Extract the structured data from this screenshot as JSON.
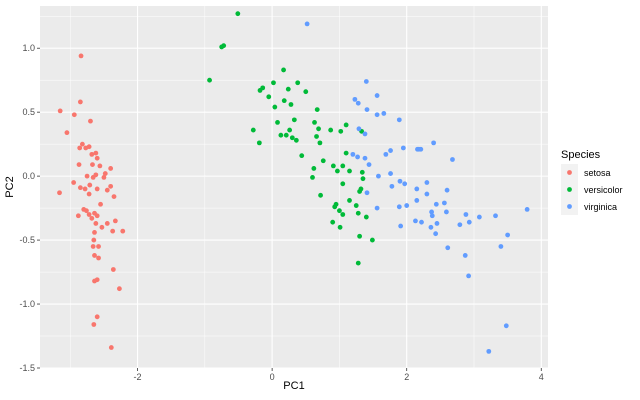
{
  "chart_data": {
    "type": "scatter",
    "xlabel": "PC1",
    "ylabel": "PC2",
    "xlim": [
      -3.45,
      4.1
    ],
    "ylim": [
      -1.5,
      1.33
    ],
    "x_ticks": [
      -2,
      0,
      2,
      4
    ],
    "y_ticks": [
      -1.5,
      -1.0,
      -0.5,
      0.0,
      0.5,
      1.0
    ],
    "x_tick_labels": [
      "-2",
      "0",
      "2",
      "4"
    ],
    "y_tick_labels": [
      "-1.5",
      "-1.0",
      "-0.5",
      "0.0",
      "0.5",
      "1.0"
    ],
    "grid": true,
    "legend": {
      "title": "Species",
      "position": "right"
    },
    "series": [
      {
        "name": "setosa",
        "color": "#F8766D",
        "points": [
          [
            -2.84,
            0.94
          ],
          [
            -3.15,
            0.51
          ],
          [
            -2.94,
            0.48
          ],
          [
            -2.85,
            0.58
          ],
          [
            -2.7,
            0.43
          ],
          [
            -3.05,
            0.34
          ],
          [
            -2.82,
            0.25
          ],
          [
            -2.77,
            0.22
          ],
          [
            -2.86,
            0.22
          ],
          [
            -2.72,
            0.23
          ],
          [
            -2.62,
            0.18
          ],
          [
            -2.68,
            0.17
          ],
          [
            -2.6,
            0.14
          ],
          [
            -2.87,
            0.09
          ],
          [
            -2.67,
            0.09
          ],
          [
            -2.56,
            0.08
          ],
          [
            -2.4,
            0.06
          ],
          [
            -2.48,
            0.02
          ],
          [
            -2.62,
            0.01
          ],
          [
            -2.75,
            0.0
          ],
          [
            -2.66,
            -0.01
          ],
          [
            -2.5,
            -0.01
          ],
          [
            -2.95,
            -0.05
          ],
          [
            -2.71,
            -0.07
          ],
          [
            -2.4,
            -0.08
          ],
          [
            -2.85,
            -0.09
          ],
          [
            -2.6,
            -0.1
          ],
          [
            -2.78,
            -0.1
          ],
          [
            -2.45,
            -0.11
          ],
          [
            -3.16,
            -0.13
          ],
          [
            -2.72,
            -0.14
          ],
          [
            -2.35,
            -0.16
          ],
          [
            -2.55,
            -0.22
          ],
          [
            -2.8,
            -0.26
          ],
          [
            -2.76,
            -0.27
          ],
          [
            -2.64,
            -0.29
          ],
          [
            -2.72,
            -0.3
          ],
          [
            -2.6,
            -0.31
          ],
          [
            -2.88,
            -0.31
          ],
          [
            -2.68,
            -0.33
          ],
          [
            -2.33,
            -0.35
          ],
          [
            -2.62,
            -0.37
          ],
          [
            -2.45,
            -0.37
          ],
          [
            -2.53,
            -0.4
          ],
          [
            -2.22,
            -0.43
          ],
          [
            -2.37,
            -0.43
          ],
          [
            -2.64,
            -0.44
          ],
          [
            -2.65,
            -0.5
          ],
          [
            -2.66,
            -0.55
          ],
          [
            -2.58,
            -0.55
          ],
          [
            -2.64,
            -0.62
          ],
          [
            -2.58,
            -0.64
          ],
          [
            -2.36,
            -0.73
          ],
          [
            -2.6,
            -0.81
          ],
          [
            -2.64,
            -0.82
          ],
          [
            -2.27,
            -0.88
          ],
          [
            -2.6,
            -1.1
          ],
          [
            -2.65,
            -1.16
          ],
          [
            -2.39,
            -1.34
          ]
        ]
      },
      {
        "name": "versicolor",
        "color": "#00BA38",
        "points": [
          [
            -0.51,
            1.27
          ],
          [
            -0.72,
            1.02
          ],
          [
            -0.75,
            1.01
          ],
          [
            -0.93,
            0.75
          ],
          [
            0.17,
            0.83
          ],
          [
            0.02,
            0.73
          ],
          [
            0.38,
            0.73
          ],
          [
            -0.14,
            0.69
          ],
          [
            -0.18,
            0.67
          ],
          [
            0.24,
            0.68
          ],
          [
            0.5,
            0.66
          ],
          [
            -0.05,
            0.62
          ],
          [
            0.18,
            0.59
          ],
          [
            0.28,
            0.56
          ],
          [
            0.04,
            0.54
          ],
          [
            0.67,
            0.52
          ],
          [
            0.33,
            0.44
          ],
          [
            0.08,
            0.42
          ],
          [
            0.63,
            0.42
          ],
          [
            1.1,
            0.4
          ],
          [
            0.69,
            0.37
          ],
          [
            0.26,
            0.36
          ],
          [
            0.87,
            0.36
          ],
          [
            1.02,
            0.35
          ],
          [
            -0.28,
            0.36
          ],
          [
            0.21,
            0.32
          ],
          [
            0.13,
            0.32
          ],
          [
            0.66,
            0.31
          ],
          [
            0.3,
            0.3
          ],
          [
            0.36,
            0.28
          ],
          [
            0.71,
            0.26
          ],
          [
            -0.19,
            0.26
          ],
          [
            1.33,
            0.35
          ],
          [
            1.1,
            0.18
          ],
          [
            0.44,
            0.16
          ],
          [
            0.76,
            0.12
          ],
          [
            0.91,
            0.08
          ],
          [
            1.05,
            0.08
          ],
          [
            0.62,
            0.06
          ],
          [
            0.97,
            0.04
          ],
          [
            1.15,
            0.04
          ],
          [
            1.34,
            0.03
          ],
          [
            0.6,
            -0.01
          ],
          [
            1.35,
            -0.02
          ],
          [
            1.05,
            -0.06
          ],
          [
            1.32,
            -0.1
          ],
          [
            1.3,
            -0.12
          ],
          [
            0.72,
            -0.15
          ],
          [
            1.15,
            -0.19
          ],
          [
            0.95,
            -0.22
          ],
          [
            1.25,
            -0.23
          ],
          [
            0.93,
            -0.24
          ],
          [
            1.0,
            -0.27
          ],
          [
            1.28,
            -0.29
          ],
          [
            1.05,
            -0.3
          ],
          [
            1.4,
            -0.32
          ],
          [
            0.9,
            -0.36
          ],
          [
            1.01,
            -0.4
          ],
          [
            1.3,
            -0.47
          ],
          [
            1.49,
            -0.5
          ],
          [
            1.28,
            -0.68
          ]
        ]
      },
      {
        "name": "virginica",
        "color": "#619CFF",
        "points": [
          [
            0.52,
            1.19
          ],
          [
            1.4,
            0.74
          ],
          [
            1.56,
            0.63
          ],
          [
            1.23,
            0.6
          ],
          [
            1.28,
            0.57
          ],
          [
            1.41,
            0.52
          ],
          [
            1.66,
            0.49
          ],
          [
            1.56,
            0.48
          ],
          [
            1.29,
            0.37
          ],
          [
            1.89,
            0.44
          ],
          [
            1.38,
            0.33
          ],
          [
            1.95,
            0.22
          ],
          [
            2.18,
            0.21
          ],
          [
            1.76,
            0.2
          ],
          [
            2.16,
            0.21
          ],
          [
            2.4,
            0.26
          ],
          [
            2.21,
            0.21
          ],
          [
            2.68,
            0.13
          ],
          [
            1.69,
            0.17
          ],
          [
            1.2,
            0.17
          ],
          [
            1.38,
            0.14
          ],
          [
            1.27,
            0.15
          ],
          [
            1.44,
            0.09
          ],
          [
            1.76,
            0.02
          ],
          [
            1.58,
            0.0
          ],
          [
            1.9,
            -0.04
          ],
          [
            2.3,
            -0.05
          ],
          [
            1.97,
            -0.06
          ],
          [
            1.78,
            -0.08
          ],
          [
            2.15,
            -0.1
          ],
          [
            2.6,
            -0.11
          ],
          [
            1.41,
            -0.13
          ],
          [
            2.3,
            -0.14
          ],
          [
            2.15,
            -0.19
          ],
          [
            2.56,
            -0.21
          ],
          [
            1.89,
            -0.24
          ],
          [
            2.44,
            -0.22
          ],
          [
            1.56,
            -0.25
          ],
          [
            2.0,
            -0.23
          ],
          [
            2.59,
            -0.28
          ],
          [
            2.37,
            -0.28
          ],
          [
            2.13,
            -0.35
          ],
          [
            2.38,
            -0.31
          ],
          [
            3.79,
            -0.26
          ],
          [
            2.88,
            -0.3
          ],
          [
            3.08,
            -0.32
          ],
          [
            3.32,
            -0.31
          ],
          [
            2.93,
            -0.36
          ],
          [
            2.22,
            -0.36
          ],
          [
            1.91,
            -0.39
          ],
          [
            2.45,
            -0.37
          ],
          [
            2.79,
            -0.38
          ],
          [
            2.36,
            -0.4
          ],
          [
            2.43,
            -0.45
          ],
          [
            3.5,
            -0.46
          ],
          [
            2.61,
            -0.56
          ],
          [
            3.4,
            -0.55
          ],
          [
            2.87,
            -0.62
          ],
          [
            2.92,
            -0.78
          ],
          [
            3.48,
            -1.17
          ],
          [
            3.22,
            -1.37
          ]
        ]
      }
    ]
  }
}
